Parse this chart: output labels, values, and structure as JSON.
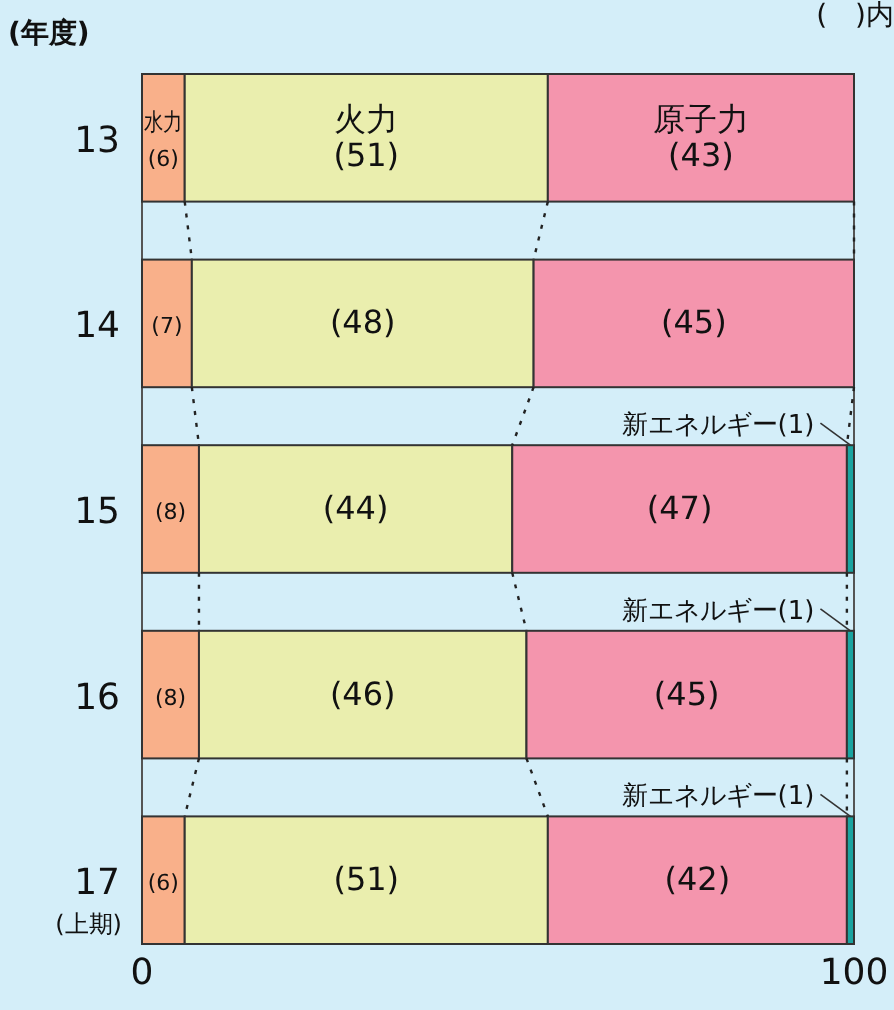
{
  "chart_data": {
    "type": "bar",
    "orientation": "horizontal",
    "stacked": true,
    "ylabel": "(年度)",
    "annotations": [
      "(　)内"
    ],
    "categories": [
      "13",
      "14",
      "15",
      "16",
      "17\n(上期)"
    ],
    "series": [
      {
        "name": "水力",
        "color": "#f9b08a",
        "values": [
          6,
          7,
          8,
          8,
          6
        ],
        "value_labels": [
          "(6)",
          "(7)",
          "(8)",
          "(8)",
          "(6)"
        ]
      },
      {
        "name": "火力",
        "color": "#eaeeae",
        "values": [
          51,
          48,
          44,
          46,
          51
        ],
        "value_labels": [
          "(51)",
          "(48)",
          "(44)",
          "(46)",
          "(51)"
        ]
      },
      {
        "name": "原子力",
        "color": "#f495ad",
        "values": [
          43,
          45,
          47,
          45,
          42
        ],
        "value_labels": [
          "(43)",
          "(45)",
          "(47)",
          "(45)",
          "(42)"
        ]
      },
      {
        "name": "新エネルギー",
        "color": "#1aa3a0",
        "values": [
          null,
          null,
          1,
          1,
          1
        ],
        "value_labels": [
          null,
          null,
          "(1)",
          "(1)",
          "(1)"
        ]
      }
    ],
    "xlim": [
      0,
      100
    ],
    "xticks": [
      0,
      100
    ],
    "grid": false
  }
}
